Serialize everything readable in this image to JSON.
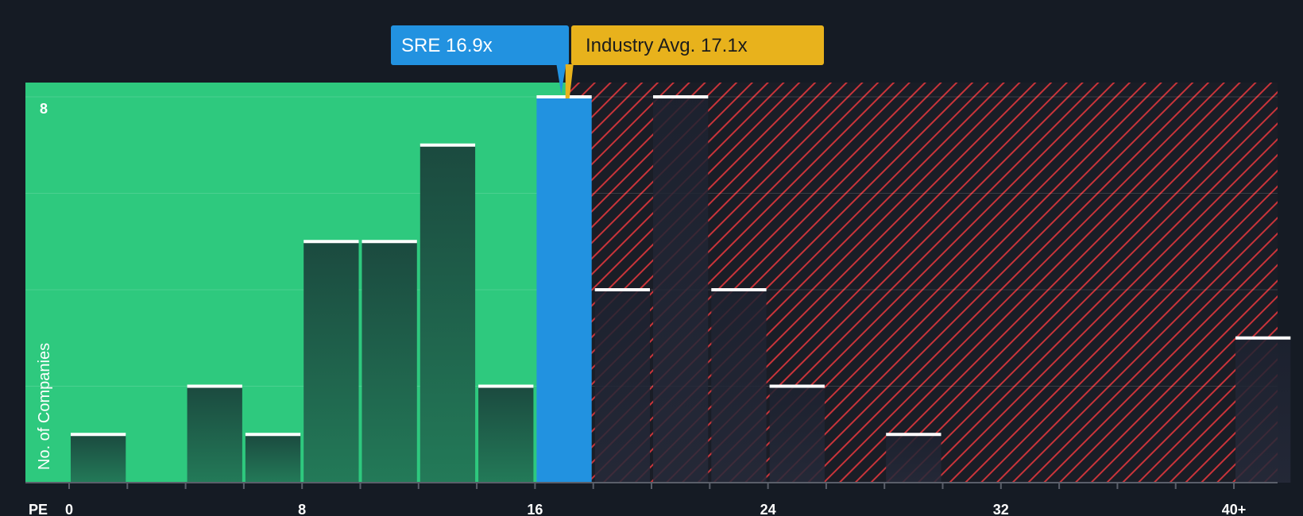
{
  "chart_data": {
    "type": "bar",
    "ylabel": "No. of Companies",
    "xlabel": "PE",
    "x_ticks": [
      "0",
      "8",
      "16",
      "24",
      "32",
      "40+"
    ],
    "y_ticks": [
      "8"
    ],
    "ylim": [
      0,
      8
    ],
    "xlim": [
      -1.5,
      41.5
    ],
    "bin_width": 2,
    "bins": [
      {
        "start": 0,
        "value": 1
      },
      {
        "start": 2,
        "value": 0
      },
      {
        "start": 4,
        "value": 2
      },
      {
        "start": 6,
        "value": 1
      },
      {
        "start": 8,
        "value": 5
      },
      {
        "start": 10,
        "value": 5
      },
      {
        "start": 12,
        "value": 7
      },
      {
        "start": 14,
        "value": 2
      },
      {
        "start": 16,
        "value": 8,
        "highlight": true
      },
      {
        "start": 18,
        "value": 4
      },
      {
        "start": 20,
        "value": 8
      },
      {
        "start": 22,
        "value": 4
      },
      {
        "start": 24,
        "value": 2
      },
      {
        "start": 26,
        "value": 0
      },
      {
        "start": 28,
        "value": 1
      },
      {
        "start": 30,
        "value": 0
      },
      {
        "start": 32,
        "value": 0
      },
      {
        "start": 34,
        "value": 0
      },
      {
        "start": 36,
        "value": 0
      },
      {
        "start": 38,
        "value": 0
      },
      {
        "start": 40,
        "value": 3
      }
    ],
    "company": {
      "label": "SRE 16.9x",
      "value": 16.9
    },
    "industry": {
      "label": "Industry Avg. 17.1x",
      "value": 17.1
    },
    "colors": {
      "background": "#151b24",
      "below_region": "#2ec97e",
      "above_region_hatch": "#e0393e",
      "company_bar": "#2292e0",
      "bar_fill_top": "#1b4a3f",
      "bar_fill_bottom": "#237a58",
      "company_callout": "#2292e0",
      "industry_callout": "#e8b21c",
      "bar_cap": "#ffffff"
    }
  }
}
